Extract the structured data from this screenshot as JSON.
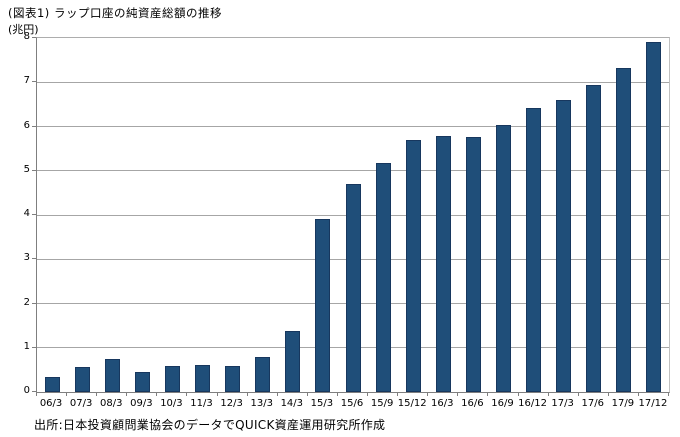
{
  "chart": {
    "title": "(図表1) ラップ口座の純資産総額の推移",
    "unit_label": "(兆円)",
    "source": "出所:日本投資顧問業協会のデータでQUICK資産運用研究所作成"
  },
  "chart_data": {
    "type": "bar",
    "title": "(図表1) ラップ口座の純資産総額の推移",
    "ylabel": "(兆円)",
    "xlabel": "",
    "categories": [
      "06/3",
      "07/3",
      "08/3",
      "09/3",
      "10/3",
      "11/3",
      "12/3",
      "13/3",
      "14/3",
      "15/3",
      "15/6",
      "15/9",
      "15/12",
      "16/3",
      "16/6",
      "16/9",
      "16/12",
      "17/3",
      "17/6",
      "17/9",
      "17/12"
    ],
    "values": [
      0.33,
      0.56,
      0.75,
      0.46,
      0.58,
      0.6,
      0.58,
      0.78,
      1.37,
      3.9,
      4.7,
      5.17,
      5.7,
      5.79,
      5.76,
      6.03,
      6.42,
      6.59,
      6.93,
      7.33,
      7.9
    ],
    "ylim": [
      0,
      8
    ],
    "yticks": [
      0,
      1,
      2,
      3,
      4,
      5,
      6,
      7,
      8
    ],
    "grid": true,
    "legend_position": "none",
    "bar_color": "#1F4E79",
    "bar_border_color": "#17375E",
    "gridline_color": "#A6A6A6",
    "axis_color": "#7F7F7F",
    "source": "出所:日本投資顧問業協会のデータでQUICK資産運用研究所作成"
  }
}
